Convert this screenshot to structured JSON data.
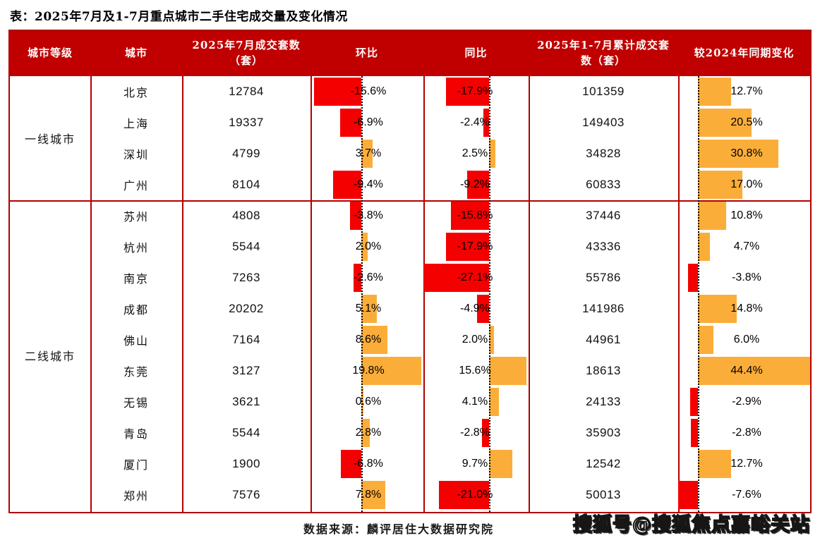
{
  "title": "表：2025年7月及1-7月重点城市二手住宅成交量及变化情况",
  "source": "数据来源：麟评居住大数据研究院",
  "watermark": "搜狐号@搜狐焦点嘉峪关站",
  "colors": {
    "header_bg": "#C00000",
    "border": "#B20000",
    "bar_negative": "#F40000",
    "bar_positive": "#FBAD3A"
  },
  "table": {
    "headers": {
      "tier": "城市等级",
      "city": "城市",
      "jul_units": "2025年7月成交套数（套）",
      "mom": "环比",
      "yoy": "同比",
      "cum_units": "2025年1-7月累计成交套数（套）",
      "chg": "较2024年同期变化"
    },
    "tiers": [
      {
        "label": "一线城市",
        "rows": [
          {
            "city": "北京",
            "jul": 12784,
            "mom": -15.6,
            "yoy": -17.9,
            "cum": 101359,
            "chg": 12.7
          },
          {
            "city": "上海",
            "jul": 19337,
            "mom": -6.9,
            "yoy": -2.4,
            "cum": 149403,
            "chg": 20.5
          },
          {
            "city": "深圳",
            "jul": 4799,
            "mom": 3.7,
            "yoy": 2.5,
            "cum": 34828,
            "chg": 30.8
          },
          {
            "city": "广州",
            "jul": 8104,
            "mom": -9.4,
            "yoy": -9.2,
            "cum": 60833,
            "chg": 17.0
          }
        ]
      },
      {
        "label": "二线城市",
        "rows": [
          {
            "city": "苏州",
            "jul": 4808,
            "mom": -3.8,
            "yoy": -15.8,
            "cum": 37446,
            "chg": 10.8
          },
          {
            "city": "杭州",
            "jul": 5544,
            "mom": 2.0,
            "yoy": -17.9,
            "cum": 43336,
            "chg": 4.7
          },
          {
            "city": "南京",
            "jul": 7263,
            "mom": -2.6,
            "yoy": -27.1,
            "cum": 55786,
            "chg": -3.8
          },
          {
            "city": "成都",
            "jul": 20202,
            "mom": 5.1,
            "yoy": -4.9,
            "cum": 141986,
            "chg": 14.8
          },
          {
            "city": "佛山",
            "jul": 7164,
            "mom": 8.6,
            "yoy": 2.0,
            "cum": 44961,
            "chg": 6.0
          },
          {
            "city": "东莞",
            "jul": 3127,
            "mom": 19.8,
            "yoy": 15.6,
            "cum": 18613,
            "chg": 44.4
          },
          {
            "city": "无锡",
            "jul": 3621,
            "mom": 0.6,
            "yoy": 4.1,
            "cum": 24133,
            "chg": -2.9
          },
          {
            "city": "青岛",
            "jul": 5544,
            "mom": 2.8,
            "yoy": -2.8,
            "cum": 35903,
            "chg": -2.8
          },
          {
            "city": "厦门",
            "jul": 1900,
            "mom": -6.8,
            "yoy": 9.7,
            "cum": 12542,
            "chg": 12.7
          },
          {
            "city": "郑州",
            "jul": 7576,
            "mom": 7.8,
            "yoy": -21.0,
            "cum": 50013,
            "chg": -7.6
          }
        ]
      }
    ]
  },
  "chart_data": {
    "type": "table",
    "title": "2025年7月及1-7月重点城市二手住宅成交量及变化情况",
    "columns": [
      "城市等级",
      "城市",
      "2025年7月成交套数（套）",
      "环比",
      "同比",
      "2025年1-7月累计成交套数（套）",
      "较2024年同期变化"
    ],
    "bar_columns": {
      "环比": {
        "unit": "%",
        "negative_color": "#F40000",
        "positive_color": "#FBAD3A"
      },
      "同比": {
        "unit": "%",
        "negative_color": "#F40000",
        "positive_color": "#FBAD3A"
      },
      "较2024年同期变化": {
        "unit": "%",
        "negative_color": "#F40000",
        "positive_color": "#FBAD3A"
      }
    },
    "rows": [
      {
        "tier": "一线城市",
        "city": "北京",
        "jul_2025_units": 12784,
        "mom_pct": -15.6,
        "yoy_pct": -17.9,
        "cum_jan_jul_units": 101359,
        "chg_vs_2024_pct": 12.7
      },
      {
        "tier": "一线城市",
        "city": "上海",
        "jul_2025_units": 19337,
        "mom_pct": -6.9,
        "yoy_pct": -2.4,
        "cum_jan_jul_units": 149403,
        "chg_vs_2024_pct": 20.5
      },
      {
        "tier": "一线城市",
        "city": "深圳",
        "jul_2025_units": 4799,
        "mom_pct": 3.7,
        "yoy_pct": 2.5,
        "cum_jan_jul_units": 34828,
        "chg_vs_2024_pct": 30.8
      },
      {
        "tier": "一线城市",
        "city": "广州",
        "jul_2025_units": 8104,
        "mom_pct": -9.4,
        "yoy_pct": -9.2,
        "cum_jan_jul_units": 60833,
        "chg_vs_2024_pct": 17.0
      },
      {
        "tier": "二线城市",
        "city": "苏州",
        "jul_2025_units": 4808,
        "mom_pct": -3.8,
        "yoy_pct": -15.8,
        "cum_jan_jul_units": 37446,
        "chg_vs_2024_pct": 10.8
      },
      {
        "tier": "二线城市",
        "city": "杭州",
        "jul_2025_units": 5544,
        "mom_pct": 2.0,
        "yoy_pct": -17.9,
        "cum_jan_jul_units": 43336,
        "chg_vs_2024_pct": 4.7
      },
      {
        "tier": "二线城市",
        "city": "南京",
        "jul_2025_units": 7263,
        "mom_pct": -2.6,
        "yoy_pct": -27.1,
        "cum_jan_jul_units": 55786,
        "chg_vs_2024_pct": -3.8
      },
      {
        "tier": "二线城市",
        "city": "成都",
        "jul_2025_units": 20202,
        "mom_pct": 5.1,
        "yoy_pct": -4.9,
        "cum_jan_jul_units": 141986,
        "chg_vs_2024_pct": 14.8
      },
      {
        "tier": "二线城市",
        "city": "佛山",
        "jul_2025_units": 7164,
        "mom_pct": 8.6,
        "yoy_pct": 2.0,
        "cum_jan_jul_units": 44961,
        "chg_vs_2024_pct": 6.0
      },
      {
        "tier": "二线城市",
        "city": "东莞",
        "jul_2025_units": 3127,
        "mom_pct": 19.8,
        "yoy_pct": 15.6,
        "cum_jan_jul_units": 18613,
        "chg_vs_2024_pct": 44.4
      },
      {
        "tier": "二线城市",
        "city": "无锡",
        "jul_2025_units": 3621,
        "mom_pct": 0.6,
        "yoy_pct": 4.1,
        "cum_jan_jul_units": 24133,
        "chg_vs_2024_pct": -2.9
      },
      {
        "tier": "二线城市",
        "city": "青岛",
        "jul_2025_units": 5544,
        "mom_pct": 2.8,
        "yoy_pct": -2.8,
        "cum_jan_jul_units": 35903,
        "chg_vs_2024_pct": -2.8
      },
      {
        "tier": "二线城市",
        "city": "厦门",
        "jul_2025_units": 1900,
        "mom_pct": -6.8,
        "yoy_pct": 9.7,
        "cum_jan_jul_units": 12542,
        "chg_vs_2024_pct": 12.7
      },
      {
        "tier": "二线城市",
        "city": "郑州",
        "jul_2025_units": 7576,
        "mom_pct": 7.8,
        "yoy_pct": -21.0,
        "cum_jan_jul_units": 50013,
        "chg_vs_2024_pct": -7.6
      }
    ]
  }
}
